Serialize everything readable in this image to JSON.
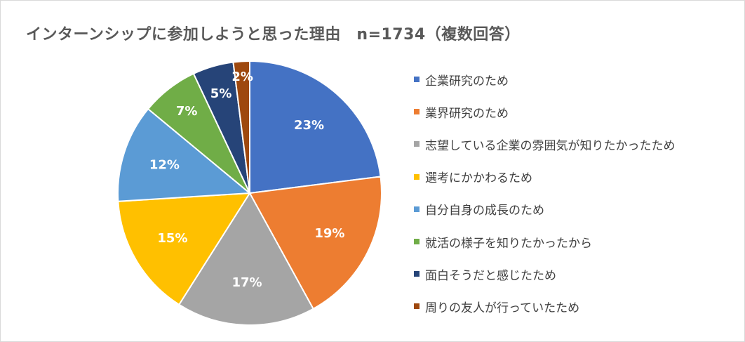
{
  "chart_data": {
    "type": "pie",
    "title": "インターンシップに参加しようと思った理由　n=1734（複数回答）",
    "slices": [
      {
        "label": "企業研究のため",
        "value": 23,
        "value_label": "23%",
        "color": "#4472c4",
        "label_color": "#ffffff"
      },
      {
        "label": "業界研究のため",
        "value": 19,
        "value_label": "19%",
        "color": "#ed7d31",
        "label_color": "#ffffff"
      },
      {
        "label": "志望している企業の雰囲気が知りたかったため",
        "value": 17,
        "value_label": "17%",
        "color": "#a5a5a5",
        "label_color": "#ffffff"
      },
      {
        "label": "選考にかかわるため",
        "value": 15,
        "value_label": "15%",
        "color": "#ffc000",
        "label_color": "#ffffff"
      },
      {
        "label": "自分自身の成長のため",
        "value": 12,
        "value_label": "12%",
        "color": "#5b9bd5",
        "label_color": "#ffffff"
      },
      {
        "label": "就活の様子を知りたかったから",
        "value": 7,
        "value_label": "7%",
        "color": "#70ad47",
        "label_color": "#ffffff"
      },
      {
        "label": "面白そうだと感じたため",
        "value": 5,
        "value_label": "5%",
        "color": "#264478",
        "label_color": "#ffffff"
      },
      {
        "label": "周りの友人が行っていたため",
        "value": 2,
        "value_label": "2%",
        "color": "#9e480e",
        "label_color": "#ffffff"
      }
    ],
    "legend_position": "right"
  }
}
